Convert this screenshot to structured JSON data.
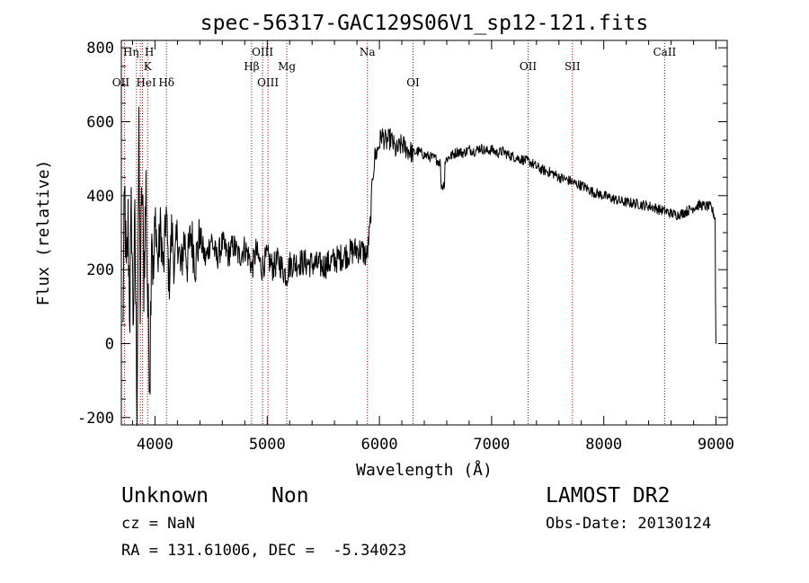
{
  "chart_data": {
    "type": "line",
    "title": "spec-56317-GAC129S06V1_sp12-121.fits",
    "xlabel": "Wavelength (Å)",
    "ylabel": "Flux (relative)",
    "xlim": [
      3700,
      9100
    ],
    "ylim": [
      -220,
      820
    ],
    "x_ticks": [
      4000,
      5000,
      6000,
      7000,
      8000,
      9000
    ],
    "y_ticks": [
      -200,
      0,
      200,
      400,
      600,
      800
    ],
    "grid": false,
    "line_color": "#000000",
    "marker_color": "#aa0000",
    "spectrum_anchors": [
      [
        3712,
        20
      ],
      [
        3730,
        420
      ],
      [
        3745,
        150
      ],
      [
        3760,
        320
      ],
      [
        3775,
        80
      ],
      [
        3790,
        380
      ],
      [
        3805,
        60
      ],
      [
        3820,
        300
      ],
      [
        3840,
        -140
      ],
      [
        3855,
        560
      ],
      [
        3868,
        120
      ],
      [
        3885,
        440
      ],
      [
        3900,
        180
      ],
      [
        3920,
        420
      ],
      [
        3935,
        100
      ],
      [
        3955,
        -80
      ],
      [
        3970,
        380
      ],
      [
        3985,
        150
      ],
      [
        4005,
        350
      ],
      [
        4025,
        210
      ],
      [
        4050,
        320
      ],
      [
        4075,
        190
      ],
      [
        4100,
        360
      ],
      [
        4125,
        160
      ],
      [
        4150,
        310
      ],
      [
        4175,
        200
      ],
      [
        4200,
        300
      ],
      [
        4230,
        190
      ],
      [
        4260,
        290
      ],
      [
        4290,
        215
      ],
      [
        4320,
        300
      ],
      [
        4360,
        220
      ],
      [
        4400,
        290
      ],
      [
        4450,
        225
      ],
      [
        4500,
        285
      ],
      [
        4550,
        230
      ],
      [
        4600,
        270
      ],
      [
        4650,
        240
      ],
      [
        4700,
        265
      ],
      [
        4750,
        235
      ],
      [
        4800,
        260
      ],
      [
        4850,
        225
      ],
      [
        4861,
        200
      ],
      [
        4900,
        250
      ],
      [
        4950,
        205
      ],
      [
        5000,
        235
      ],
      [
        5050,
        205
      ],
      [
        5100,
        225
      ],
      [
        5150,
        195
      ],
      [
        5175,
        185
      ],
      [
        5200,
        215
      ],
      [
        5300,
        220
      ],
      [
        5400,
        215
      ],
      [
        5500,
        210
      ],
      [
        5600,
        225
      ],
      [
        5700,
        240
      ],
      [
        5800,
        255
      ],
      [
        5850,
        250
      ],
      [
        5890,
        235
      ],
      [
        5920,
        330
      ],
      [
        5940,
        455
      ],
      [
        5960,
        505
      ],
      [
        5990,
        530
      ],
      [
        6020,
        565
      ],
      [
        6060,
        545
      ],
      [
        6100,
        555
      ],
      [
        6150,
        520
      ],
      [
        6200,
        540
      ],
      [
        6250,
        525
      ],
      [
        6300,
        515
      ],
      [
        6350,
        520
      ],
      [
        6400,
        510
      ],
      [
        6450,
        505
      ],
      [
        6500,
        500
      ],
      [
        6540,
        490
      ],
      [
        6563,
        480
      ],
      [
        6600,
        500
      ],
      [
        6650,
        510
      ],
      [
        6700,
        520
      ],
      [
        6750,
        515
      ],
      [
        6800,
        525
      ],
      [
        6850,
        520
      ],
      [
        6900,
        530
      ],
      [
        6950,
        520
      ],
      [
        7000,
        525
      ],
      [
        7050,
        515
      ],
      [
        7100,
        520
      ],
      [
        7150,
        510
      ],
      [
        7200,
        505
      ],
      [
        7250,
        500
      ],
      [
        7300,
        495
      ],
      [
        7350,
        490
      ],
      [
        7400,
        478
      ],
      [
        7450,
        470
      ],
      [
        7500,
        465
      ],
      [
        7550,
        460
      ],
      [
        7600,
        450
      ],
      [
        7650,
        445
      ],
      [
        7700,
        440
      ],
      [
        7750,
        432
      ],
      [
        7800,
        428
      ],
      [
        7850,
        420
      ],
      [
        7900,
        410
      ],
      [
        7950,
        405
      ],
      [
        8000,
        400
      ],
      [
        8050,
        395
      ],
      [
        8100,
        390
      ],
      [
        8150,
        385
      ],
      [
        8200,
        382
      ],
      [
        8250,
        380
      ],
      [
        8300,
        378
      ],
      [
        8350,
        375
      ],
      [
        8400,
        372
      ],
      [
        8450,
        368
      ],
      [
        8500,
        362
      ],
      [
        8550,
        358
      ],
      [
        8600,
        352
      ],
      [
        8650,
        348
      ],
      [
        8700,
        352
      ],
      [
        8750,
        360
      ],
      [
        8800,
        368
      ],
      [
        8850,
        375
      ],
      [
        8900,
        372
      ],
      [
        8950,
        370
      ],
      [
        8975,
        355
      ],
      [
        8990,
        340
      ],
      [
        9000,
        0
      ]
    ],
    "absorption_features": [
      [
        6563,
        -55,
        18
      ]
    ],
    "lines": [
      {
        "label": "OII",
        "wavelength": 3727,
        "row": 3,
        "offset": -4
      },
      {
        "label": "Hη",
        "wavelength": 3835,
        "row": 1,
        "offset": -6
      },
      {
        "label": "H",
        "wavelength": 3869,
        "row": 1,
        "offset": 10
      },
      {
        "label": "HeI",
        "wavelength": 3889,
        "row": 3,
        "offset": 4
      },
      {
        "label": "K",
        "wavelength": 3934,
        "row": 2,
        "offset": 0
      },
      {
        "label": "Hδ",
        "wavelength": 4102,
        "row": 3,
        "offset": 0
      },
      {
        "label": "Hβ",
        "wavelength": 4861,
        "row": 2,
        "offset": 0
      },
      {
        "label": "OIII",
        "wavelength": 4959,
        "row": 1,
        "offset": 0
      },
      {
        "label": "OIII",
        "wavelength": 5007,
        "row": 3,
        "offset": 0
      },
      {
        "label": "Mg",
        "wavelength": 5175,
        "row": 2,
        "offset": 0
      },
      {
        "label": "Na",
        "wavelength": 5893,
        "row": 1,
        "offset": 0
      },
      {
        "label": "OI",
        "wavelength": 6300,
        "row": 3,
        "offset": 0
      },
      {
        "label": "OII",
        "wavelength": 7325,
        "row": 2,
        "offset": 0
      },
      {
        "label": "SII",
        "wavelength": 7720,
        "row": 2,
        "offset": 0
      },
      {
        "label": "CaII",
        "wavelength": 8542,
        "row": 1,
        "offset": 0
      }
    ]
  },
  "info": {
    "class_label": "Unknown",
    "subclass_label": "Non",
    "redshift_text": "cz = NaN",
    "coords_text": "RA = 131.61006, DEC =  -5.34023",
    "survey_label": "LAMOST DR2",
    "obs_date_text": "Obs-Date: 20130124"
  }
}
